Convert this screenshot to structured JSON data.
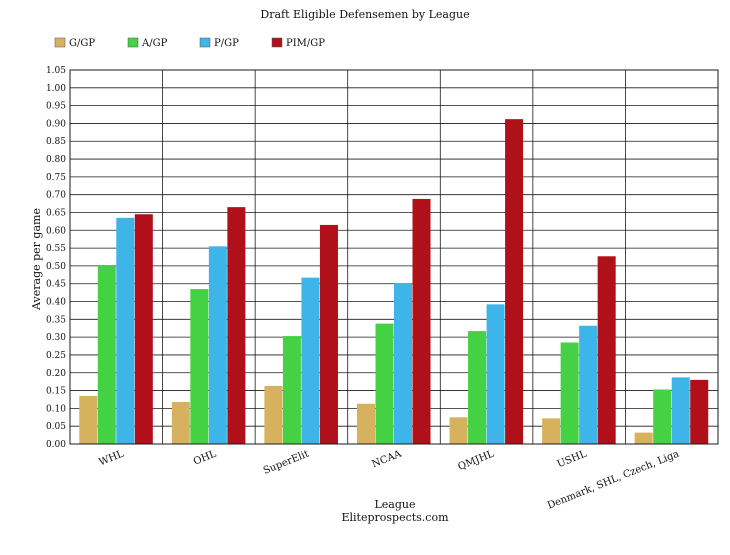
{
  "chart_data": {
    "type": "bar",
    "title": "Draft Eligible Defensemen by League",
    "xlabel": "League",
    "source": "Eliteprospects.com",
    "ylabel": "Average per game",
    "ylim": [
      0,
      1.05
    ],
    "ytick_step": 0.05,
    "ytick_labels": [
      "0.00",
      "0.05",
      "0.10",
      "0.15",
      "0.20",
      "0.25",
      "0.30",
      "0.35",
      "0.40",
      "0.45",
      "0.50",
      "0.55",
      "0.60",
      "0.65",
      "0.70",
      "0.75",
      "0.80",
      "0.85",
      "0.90",
      "0.95",
      "1.00",
      "1.05"
    ],
    "grid": true,
    "legend_position": "top-left",
    "categories": [
      "WHL",
      "OHL",
      "SuperElit",
      "NCAA",
      "QMJHL",
      "USHL",
      "Denmark, SHL, Czech, Liga"
    ],
    "series": [
      {
        "name": "G/GP",
        "color": "#D6B25E",
        "values": [
          0.135,
          0.118,
          0.163,
          0.113,
          0.075,
          0.072,
          0.032
        ]
      },
      {
        "name": "A/GP",
        "color": "#44D244",
        "values": [
          0.5,
          0.435,
          0.303,
          0.338,
          0.317,
          0.285,
          0.153
        ]
      },
      {
        "name": "P/GP",
        "color": "#3DB5E8",
        "values": [
          0.635,
          0.555,
          0.467,
          0.452,
          0.392,
          0.332,
          0.187
        ]
      },
      {
        "name": "PIM/GP",
        "color": "#B0101A",
        "values": [
          0.645,
          0.665,
          0.615,
          0.688,
          0.912,
          0.527,
          0.18
        ]
      }
    ]
  }
}
